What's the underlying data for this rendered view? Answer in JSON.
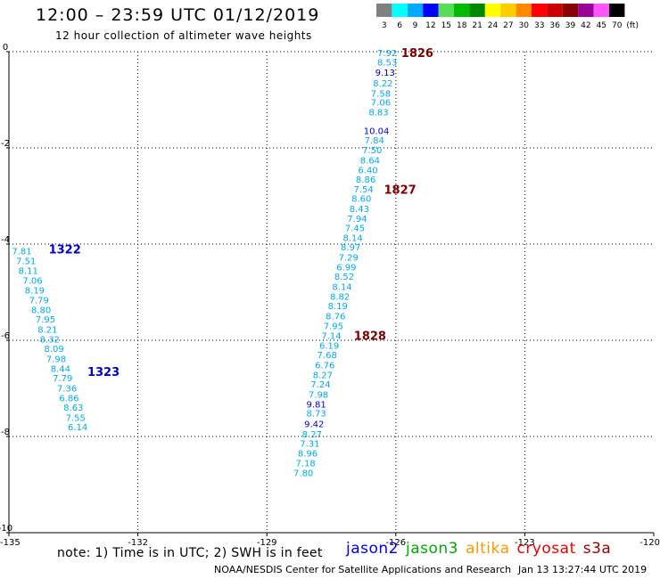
{
  "header": {
    "title": "12:00 – 23:59 UTC 01/12/2019",
    "subtitle": "12 hour collection of altimeter wave heights"
  },
  "color_scale": {
    "labels": [
      "3",
      "6",
      "9",
      "12",
      "15",
      "18",
      "21",
      "24",
      "27",
      "30",
      "33",
      "36",
      "39",
      "42",
      "45",
      "70"
    ],
    "unit": "(ft)",
    "colors": [
      "#808080",
      "#00ffff",
      "#00aaff",
      "#0000ff",
      "#55dd55",
      "#00bb00",
      "#008800",
      "#ffff00",
      "#ffcc00",
      "#ff8800",
      "#ff0000",
      "#cc0000",
      "#880000",
      "#990099",
      "#ff55ff",
      "#000000"
    ]
  },
  "chart_data": {
    "type": "scatter",
    "xlim": [
      -135,
      -120
    ],
    "ylim": [
      -10,
      0
    ],
    "x_ticks": [
      "-135",
      "-132",
      "-129",
      "-126",
      "-123",
      "-120"
    ],
    "y_ticks": [
      "0",
      "-2",
      "-4",
      "-6",
      "-8",
      "-10"
    ],
    "grid": true,
    "series": [
      {
        "color": "#00aaee",
        "points": [
          {
            "x": -126.2,
            "y": -0.02,
            "v": "7.92"
          },
          {
            "x": -126.2,
            "y": -0.21,
            "v": "8.53"
          },
          {
            "x": -126.3,
            "y": -0.65,
            "v": "8.22"
          },
          {
            "x": -126.35,
            "y": -0.86,
            "v": "7.58"
          },
          {
            "x": -126.35,
            "y": -1.05,
            "v": "7.06"
          },
          {
            "x": -126.4,
            "y": -1.25,
            "v": "8.83"
          },
          {
            "x": -126.5,
            "y": -1.83,
            "v": "7.84"
          },
          {
            "x": -126.55,
            "y": -2.04,
            "v": "7.50"
          },
          {
            "x": -126.6,
            "y": -2.25,
            "v": "8.64"
          },
          {
            "x": -126.65,
            "y": -2.45,
            "v": "6.40"
          },
          {
            "x": -126.7,
            "y": -2.65,
            "v": "8.86"
          },
          {
            "x": -126.75,
            "y": -2.85,
            "v": "7.54"
          },
          {
            "x": -126.8,
            "y": -3.05,
            "v": "8.60"
          },
          {
            "x": -126.85,
            "y": -3.26,
            "v": "8.43"
          },
          {
            "x": -126.9,
            "y": -3.46,
            "v": "7.94"
          },
          {
            "x": -126.95,
            "y": -3.66,
            "v": "7.45"
          },
          {
            "x": -127.0,
            "y": -3.86,
            "v": "8.14"
          },
          {
            "x": -127.05,
            "y": -4.06,
            "v": "8.97"
          },
          {
            "x": -127.1,
            "y": -4.27,
            "v": "7.29"
          },
          {
            "x": -127.15,
            "y": -4.47,
            "v": "6.99"
          },
          {
            "x": -127.2,
            "y": -4.67,
            "v": "8.52"
          },
          {
            "x": -127.25,
            "y": -4.88,
            "v": "8.14"
          },
          {
            "x": -127.3,
            "y": -5.08,
            "v": "8.82"
          },
          {
            "x": -127.35,
            "y": -5.28,
            "v": "8.19"
          },
          {
            "x": -127.4,
            "y": -5.49,
            "v": "8.76"
          },
          {
            "x": -127.45,
            "y": -5.69,
            "v": "7.95"
          },
          {
            "x": -127.5,
            "y": -5.9,
            "v": "7.14"
          },
          {
            "x": -127.55,
            "y": -6.1,
            "v": "6.19"
          },
          {
            "x": -127.6,
            "y": -6.3,
            "v": "7.68"
          },
          {
            "x": -127.65,
            "y": -6.51,
            "v": "6.76"
          },
          {
            "x": -127.7,
            "y": -6.71,
            "v": "8.27"
          },
          {
            "x": -127.75,
            "y": -6.91,
            "v": "7.24"
          },
          {
            "x": -127.8,
            "y": -7.12,
            "v": "7.98"
          },
          {
            "x": -127.85,
            "y": -7.51,
            "v": "8.73"
          },
          {
            "x": -127.95,
            "y": -7.94,
            "v": "8.27"
          },
          {
            "x": -128.0,
            "y": -8.14,
            "v": "7.31"
          },
          {
            "x": -128.05,
            "y": -8.34,
            "v": "8.96"
          },
          {
            "x": -128.1,
            "y": -8.55,
            "v": "7.18"
          },
          {
            "x": -128.15,
            "y": -8.75,
            "v": "7.80"
          },
          {
            "x": -134.7,
            "y": -4.14,
            "v": "7.81"
          },
          {
            "x": -134.6,
            "y": -4.34,
            "v": "7.51"
          },
          {
            "x": -134.55,
            "y": -4.55,
            "v": "8.11"
          },
          {
            "x": -134.45,
            "y": -4.75,
            "v": "7.06"
          },
          {
            "x": -134.4,
            "y": -4.95,
            "v": "8.19"
          },
          {
            "x": -134.3,
            "y": -5.16,
            "v": "7.79"
          },
          {
            "x": -134.25,
            "y": -5.36,
            "v": "8.80"
          },
          {
            "x": -134.15,
            "y": -5.56,
            "v": "7.95"
          },
          {
            "x": -134.1,
            "y": -5.77,
            "v": "8.21"
          },
          {
            "x": -134.05,
            "y": -5.97,
            "v": "8.32"
          },
          {
            "x": -133.95,
            "y": -6.17,
            "v": "8.09"
          },
          {
            "x": -133.9,
            "y": -6.38,
            "v": "7.98"
          },
          {
            "x": -133.8,
            "y": -6.58,
            "v": "8.44"
          },
          {
            "x": -133.75,
            "y": -6.78,
            "v": "7.79"
          },
          {
            "x": -133.65,
            "y": -6.99,
            "v": "7.36"
          },
          {
            "x": -133.6,
            "y": -7.19,
            "v": "6.86"
          },
          {
            "x": -133.5,
            "y": -7.39,
            "v": "8.63"
          },
          {
            "x": -133.45,
            "y": -7.6,
            "v": "7.55"
          },
          {
            "x": -133.4,
            "y": -7.8,
            "v": "6.14"
          }
        ]
      },
      {
        "color": "#0000cc",
        "points": [
          {
            "x": -126.25,
            "y": -0.43,
            "v": "9.13"
          },
          {
            "x": -126.45,
            "y": -1.64,
            "v": "10.04"
          },
          {
            "x": -127.85,
            "y": -7.32,
            "v": "9.81"
          },
          {
            "x": -127.9,
            "y": -7.73,
            "v": "9.42"
          }
        ]
      }
    ],
    "annotations": [
      {
        "text": "1826",
        "x": -125.5,
        "y": -0.02,
        "color": "#7a0000"
      },
      {
        "text": "1827",
        "x": -125.9,
        "y": -2.86,
        "color": "#7a0000"
      },
      {
        "text": "1828",
        "x": -126.6,
        "y": -5.9,
        "color": "#7a0000"
      },
      {
        "text": "1322",
        "x": -133.7,
        "y": -4.1,
        "color": "#0000cc"
      },
      {
        "text": "1323",
        "x": -132.8,
        "y": -6.65,
        "color": "#0000cc"
      }
    ]
  },
  "footer": {
    "note": "note:  1) Time is in UTC;  2) SWH is in feet",
    "missions": [
      {
        "name": "jason2",
        "color": "#0000ee"
      },
      {
        "name": "jason3",
        "color": "#00aa00"
      },
      {
        "name": "altika",
        "color": "#ff9900"
      },
      {
        "name": "cryosat",
        "color": "#ee0000"
      },
      {
        "name": "s3a",
        "color": "#990000"
      }
    ],
    "source": "NOAA/NESDIS Center for Satellite Applications and Research",
    "timestamp": "Jan 13 13:27:44 UTC 2019"
  }
}
